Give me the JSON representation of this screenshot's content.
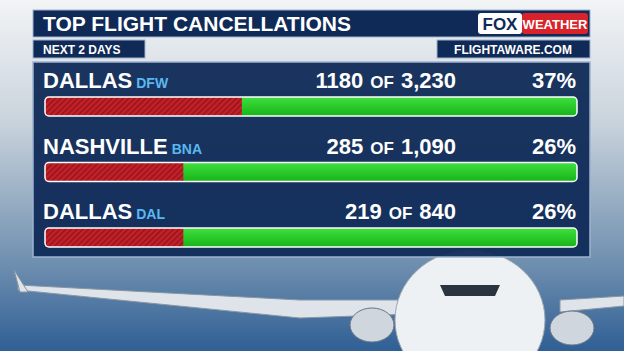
{
  "chart_data": {
    "type": "bar",
    "orientation": "horizontal",
    "title": "TOP FLIGHT CANCELLATIONS",
    "subtitle": "NEXT 2 DAYS",
    "source": "FLIGHTAWARE.COM",
    "logo": [
      "FOX",
      "WEATHER"
    ],
    "categories": [
      "DALLAS",
      "NASHVILLE",
      "DALLAS"
    ],
    "codes": [
      "DFW",
      "BNA",
      "DAL"
    ],
    "values": [
      37,
      26,
      26
    ],
    "value_labels": [
      "37%",
      "26%",
      "26%"
    ],
    "cancelled": [
      1180,
      285,
      219
    ],
    "connector": "OF",
    "totals": [
      3230,
      1090,
      840
    ],
    "total_labels": [
      "3,230",
      "1,090",
      "840"
    ],
    "color": "#c4202a",
    "xlim": [
      0,
      100
    ],
    "xticks": [],
    "tick_labels": false,
    "data_labels": true
  }
}
